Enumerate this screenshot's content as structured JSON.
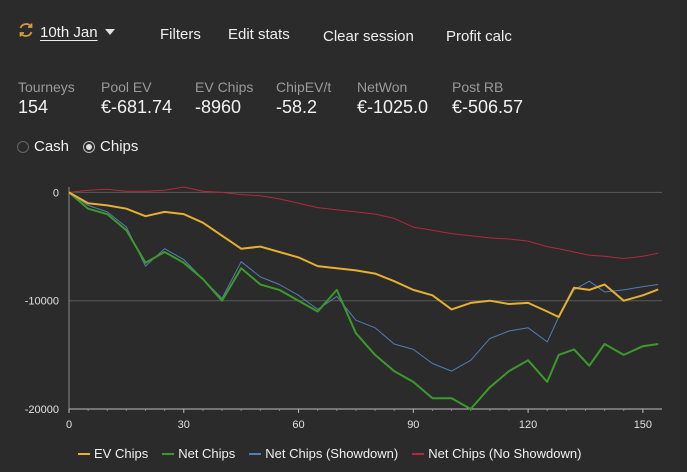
{
  "toolbar": {
    "session_label": "10th Jan",
    "filters": "Filters",
    "edit_stats": "Edit stats",
    "clear_session": "Clear session",
    "profit_calc": "Profit calc"
  },
  "stats": [
    {
      "label": "Tourneys",
      "value": "154"
    },
    {
      "label": "Pool EV",
      "value": "€-681.74"
    },
    {
      "label": "EV Chips",
      "value": "-8960"
    },
    {
      "label": "ChipEV/t",
      "value": "-58.2"
    },
    {
      "label": "NetWon",
      "value": "€-1025.0"
    },
    {
      "label": "Post RB",
      "value": "€-506.57"
    }
  ],
  "mode": {
    "cash_label": "Cash",
    "chips_label": "Chips",
    "selected": "Chips"
  },
  "colors": {
    "ev_chips": "#e6b030",
    "net_chips": "#3c9a2a",
    "net_showdown": "#4f7fb5",
    "net_no_showdown": "#b02a40",
    "icon_orange": "#d89a3a"
  },
  "chart_data": {
    "type": "line",
    "xlim": [
      0,
      155
    ],
    "ylim": [
      -20000,
      500
    ],
    "xticks": [
      "0",
      "30",
      "60",
      "90",
      "120",
      "150"
    ],
    "yticks": [
      "0",
      "-10000",
      "-20000"
    ],
    "grid": true,
    "legend": "bottom",
    "series": [
      {
        "name": "EV Chips",
        "color_key": "ev_chips",
        "x": [
          0,
          5,
          10,
          15,
          20,
          25,
          30,
          35,
          40,
          45,
          50,
          55,
          60,
          65,
          70,
          75,
          80,
          85,
          90,
          95,
          100,
          105,
          110,
          115,
          120,
          125,
          128,
          132,
          136,
          140,
          145,
          150,
          154
        ],
        "y": [
          0,
          -1000,
          -1200,
          -1500,
          -2200,
          -1800,
          -2000,
          -2800,
          -4000,
          -5200,
          -5000,
          -5500,
          -6000,
          -6800,
          -7000,
          -7200,
          -7500,
          -8200,
          -9000,
          -9500,
          -10800,
          -10200,
          -10000,
          -10300,
          -10200,
          -11000,
          -11500,
          -8800,
          -9000,
          -8500,
          -10000,
          -9500,
          -8960
        ]
      },
      {
        "name": "Net Chips",
        "x": [
          0,
          5,
          10,
          15,
          20,
          25,
          30,
          35,
          40,
          45,
          50,
          55,
          60,
          65,
          70,
          75,
          80,
          85,
          90,
          95,
          100,
          105,
          110,
          115,
          120,
          125,
          128,
          132,
          136,
          140,
          145,
          150,
          154
        ],
        "y": [
          0,
          -1500,
          -2000,
          -3500,
          -6500,
          -5500,
          -6500,
          -8000,
          -10000,
          -7000,
          -8500,
          -9000,
          -10000,
          -11000,
          -9000,
          -13000,
          -15000,
          -16500,
          -17500,
          -19000,
          -19000,
          -20000,
          -18000,
          -16500,
          -15500,
          -17500,
          -15000,
          -14500,
          -16000,
          -14000,
          -15000,
          -14200,
          -14000
        ]
      },
      {
        "name": "Net Chips (Showdown)",
        "x": [
          0,
          5,
          10,
          15,
          20,
          25,
          30,
          35,
          40,
          45,
          50,
          55,
          60,
          65,
          70,
          75,
          80,
          85,
          90,
          95,
          100,
          105,
          110,
          115,
          120,
          125,
          128,
          132,
          136,
          140,
          145,
          150,
          154
        ],
        "y": [
          0,
          -1200,
          -1800,
          -3200,
          -6800,
          -5200,
          -6200,
          -8000,
          -9800,
          -6400,
          -7800,
          -8500,
          -9500,
          -10800,
          -9600,
          -11800,
          -12500,
          -14000,
          -14500,
          -15800,
          -16500,
          -15500,
          -13500,
          -12800,
          -12500,
          -13800,
          -11500,
          -9000,
          -8200,
          -9200,
          -9000,
          -8700,
          -8500
        ]
      },
      {
        "name": "Net Chips (No Showdown)",
        "x": [
          0,
          5,
          10,
          15,
          20,
          25,
          30,
          35,
          40,
          45,
          50,
          55,
          60,
          65,
          70,
          75,
          80,
          85,
          90,
          95,
          100,
          105,
          110,
          115,
          120,
          125,
          128,
          132,
          136,
          140,
          145,
          150,
          154
        ],
        "y": [
          0,
          200,
          300,
          100,
          100,
          200,
          500,
          100,
          0,
          -200,
          -300,
          -600,
          -1000,
          -1400,
          -1600,
          -1800,
          -2000,
          -2400,
          -3200,
          -3500,
          -3800,
          -4000,
          -4200,
          -4300,
          -4500,
          -5000,
          -5200,
          -5500,
          -5800,
          -5900,
          -6100,
          -5900,
          -5600
        ]
      }
    ]
  }
}
